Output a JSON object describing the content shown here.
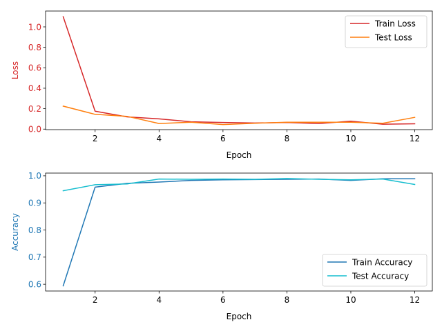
{
  "chart_data": [
    {
      "type": "line",
      "xlabel": "Epoch",
      "ylabel": "Loss",
      "ylabel_color": "#d62728",
      "xlim": [
        0.45,
        12.55
      ],
      "ylim": [
        -0.005,
        1.155
      ],
      "xticks": [
        2,
        4,
        6,
        8,
        10,
        12
      ],
      "yticks": [
        0.0,
        0.2,
        0.4,
        0.6,
        0.8,
        1.0
      ],
      "ytick_labels": [
        "0.0",
        "0.2",
        "0.4",
        "0.6",
        "0.8",
        "1.0"
      ],
      "ytick_color": "#d62728",
      "legend_position": "top-right",
      "x": [
        1,
        2,
        3,
        4,
        5,
        6,
        7,
        8,
        9,
        10,
        11,
        12
      ],
      "series": [
        {
          "name": "Train Loss",
          "color": "#d62728",
          "values": [
            1.1,
            0.175,
            0.12,
            0.1,
            0.072,
            0.065,
            0.06,
            0.065,
            0.055,
            0.078,
            0.048,
            0.052
          ]
        },
        {
          "name": "Test Loss",
          "color": "#ff7f0e",
          "values": [
            0.225,
            0.145,
            0.125,
            0.055,
            0.068,
            0.045,
            0.058,
            0.068,
            0.068,
            0.068,
            0.058,
            0.115
          ]
        }
      ]
    },
    {
      "type": "line",
      "xlabel": "Epoch",
      "ylabel": "Accuracy",
      "ylabel_color": "#1f77b4",
      "xlim": [
        0.45,
        12.55
      ],
      "ylim": [
        0.575,
        1.01
      ],
      "xticks": [
        2,
        4,
        6,
        8,
        10,
        12
      ],
      "yticks": [
        0.6,
        0.7,
        0.8,
        0.9,
        1.0
      ],
      "ytick_labels": [
        "0.6",
        "0.7",
        "0.8",
        "0.9",
        "1.0"
      ],
      "ytick_color": "#1f77b4",
      "legend_position": "bottom-right",
      "x": [
        1,
        2,
        3,
        4,
        5,
        6,
        7,
        8,
        9,
        10,
        11,
        12
      ],
      "series": [
        {
          "name": "Train Accuracy",
          "color": "#1f77b4",
          "values": [
            0.594,
            0.958,
            0.972,
            0.977,
            0.983,
            0.985,
            0.986,
            0.987,
            0.988,
            0.983,
            0.989,
            0.989
          ]
        },
        {
          "name": "Test Accuracy",
          "color": "#17becf",
          "values": [
            0.945,
            0.967,
            0.97,
            0.988,
            0.987,
            0.988,
            0.987,
            0.99,
            0.987,
            0.985,
            0.988,
            0.968
          ]
        }
      ]
    }
  ]
}
